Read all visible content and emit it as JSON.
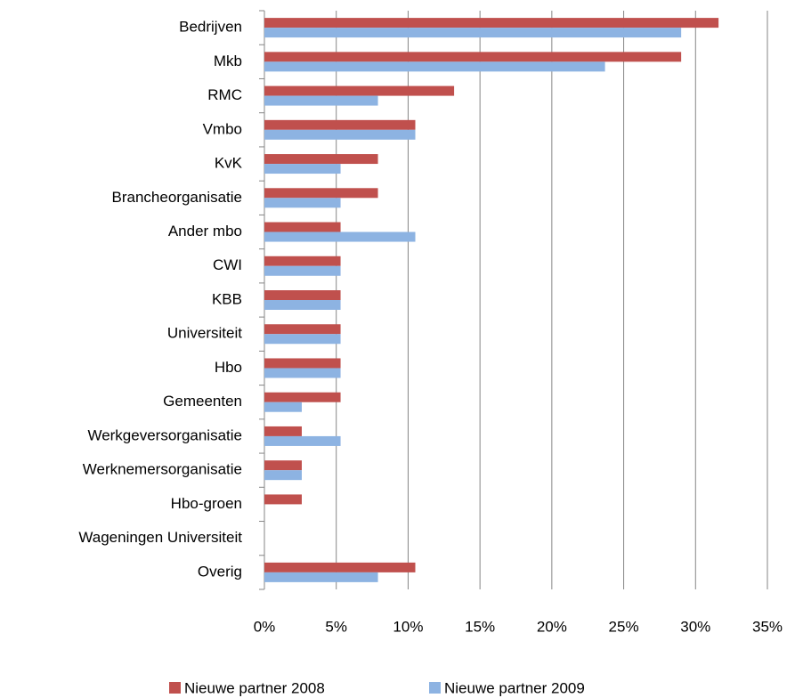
{
  "chart_data": {
    "type": "bar",
    "orientation": "horizontal",
    "categories": [
      "Bedrijven",
      "Mkb",
      "RMC",
      "Vmbo",
      "KvK",
      "Brancheorganisatie",
      "Ander mbo",
      "CWI",
      "KBB",
      "Universiteit",
      "Hbo",
      "Gemeenten",
      "Werkgeversorganisatie",
      "Werknemersorganisatie",
      "Hbo-groen",
      "Wageningen Universiteit",
      "Overig"
    ],
    "series": [
      {
        "name": "Nieuwe partner 2008",
        "color": "#c0504d",
        "values": [
          31.6,
          29.0,
          13.2,
          10.5,
          7.9,
          7.9,
          5.3,
          5.3,
          5.3,
          5.3,
          5.3,
          5.3,
          2.6,
          2.6,
          2.6,
          0,
          10.5
        ]
      },
      {
        "name": "Nieuwe partner 2009",
        "color": "#8db3e2",
        "values": [
          29.0,
          23.7,
          7.9,
          10.5,
          5.3,
          5.3,
          10.5,
          5.3,
          5.3,
          5.3,
          5.3,
          2.6,
          5.3,
          2.6,
          0,
          0,
          7.9
        ]
      }
    ],
    "xlim": [
      0,
      35
    ],
    "xticks": [
      {
        "value": 0,
        "label": "0%"
      },
      {
        "value": 5,
        "label": "5%"
      },
      {
        "value": 10,
        "label": "10%"
      },
      {
        "value": 15,
        "label": "15%"
      },
      {
        "value": 20,
        "label": "20%"
      },
      {
        "value": 25,
        "label": "25%"
      },
      {
        "value": 30,
        "label": "30%"
      },
      {
        "value": 35,
        "label": "35%"
      }
    ],
    "grid": true,
    "legend": "bottom"
  }
}
